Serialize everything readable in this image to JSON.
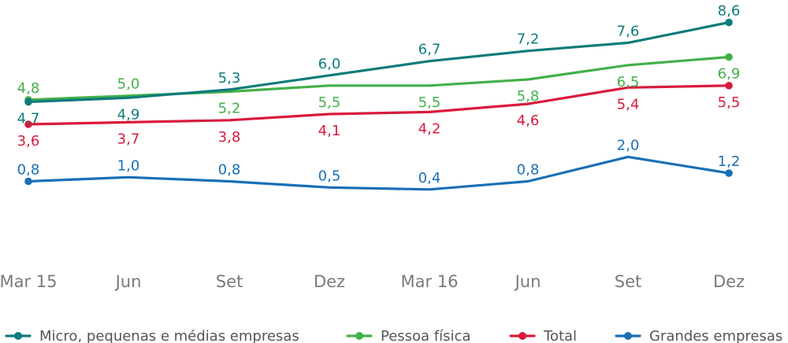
{
  "chart_data": {
    "type": "line",
    "title": "",
    "xlabel": "",
    "ylabel": "",
    "categories": [
      "Mar 15",
      "Jun",
      "Set",
      "Dez",
      "Mar 16",
      "Jun",
      "Set",
      "Dez"
    ],
    "ylim": [
      0,
      9
    ],
    "grid": false,
    "legend_position": "bottom",
    "series": [
      {
        "name": "Micro, pequenas e médias empresas",
        "color": "#0f7b7b",
        "values": [
          4.7,
          4.9,
          5.3,
          6.0,
          6.7,
          7.2,
          7.6,
          8.6
        ],
        "labels": [
          "4,7",
          "4,9",
          "5,3",
          "6,0",
          "6,7",
          "7,2",
          "7,6",
          "8,6"
        ],
        "label_side": [
          "below",
          "below",
          "above",
          "above",
          "above",
          "above",
          "above",
          "above"
        ]
      },
      {
        "name": "Pessoa física",
        "color": "#43b04a",
        "values": [
          4.8,
          5.0,
          5.2,
          5.5,
          5.5,
          5.8,
          6.5,
          6.9
        ],
        "labels": [
          "4,8",
          "5,0",
          "5,2",
          "5,5",
          "5,5",
          "5,8",
          "6,5",
          "6,9"
        ],
        "label_side": [
          "above",
          "above",
          "below",
          "below",
          "below",
          "below",
          "below",
          "below"
        ]
      },
      {
        "name": "Total",
        "color": "#d91a3c",
        "values": [
          3.6,
          3.7,
          3.8,
          4.1,
          4.2,
          4.6,
          5.4,
          5.5
        ],
        "labels": [
          "3,6",
          "3,7",
          "3,8",
          "4,1",
          "4,2",
          "4,6",
          "5,4",
          "5,5"
        ],
        "label_side": [
          "below",
          "below",
          "below",
          "below",
          "below",
          "below",
          "below",
          "below"
        ]
      },
      {
        "name": "Grandes empresas",
        "color": "#1a6fb5",
        "values": [
          0.8,
          1.0,
          0.8,
          0.5,
          0.4,
          0.8,
          2.0,
          1.2
        ],
        "labels": [
          "0,8",
          "1,0",
          "0,8",
          "0,5",
          "0,4",
          "0,8",
          "2,0",
          "1,2"
        ],
        "label_side": [
          "above",
          "above",
          "above",
          "above",
          "above",
          "above",
          "above",
          "above"
        ]
      }
    ]
  }
}
